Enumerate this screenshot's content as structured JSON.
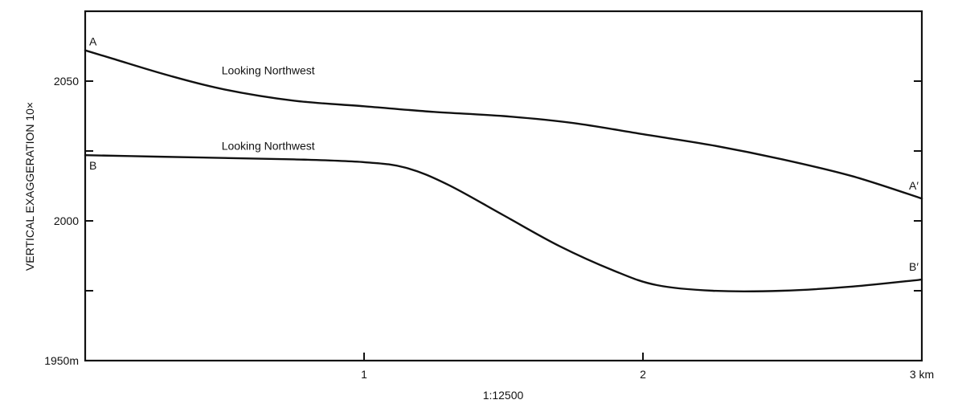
{
  "chart_data": {
    "type": "line",
    "title": "",
    "xlabel": "1:12500",
    "ylabel": "VERTICAL EXAGGERATION 10×",
    "xlim": [
      0,
      3
    ],
    "ylim": [
      1950,
      2075
    ],
    "x_ticks": [
      {
        "value": 1,
        "label": "1"
      },
      {
        "value": 2,
        "label": "2"
      },
      {
        "value": 3,
        "label": "3 km"
      }
    ],
    "y_ticks": [
      {
        "value": 1950,
        "label": "1950m"
      },
      {
        "value": 1975,
        "label": ""
      },
      {
        "value": 2000,
        "label": "2000"
      },
      {
        "value": 2025,
        "label": ""
      },
      {
        "value": 2050,
        "label": "2050"
      }
    ],
    "grid": false,
    "series": [
      {
        "name": "A–A′",
        "start_label": "A",
        "end_label": "A′",
        "annotation": "Looking Northwest",
        "points": [
          [
            0,
            2061
          ],
          [
            0.1,
            2058
          ],
          [
            0.3,
            2052
          ],
          [
            0.5,
            2047
          ],
          [
            0.75,
            2043
          ],
          [
            1.0,
            2041
          ],
          [
            1.25,
            2039
          ],
          [
            1.5,
            2037.5
          ],
          [
            1.75,
            2035
          ],
          [
            2.0,
            2031
          ],
          [
            2.25,
            2027
          ],
          [
            2.5,
            2022
          ],
          [
            2.75,
            2016
          ],
          [
            3.0,
            2008
          ]
        ]
      },
      {
        "name": "B–B′",
        "start_label": "B",
        "end_label": "B′",
        "annotation": "Looking Northwest",
        "points": [
          [
            0,
            2023.5
          ],
          [
            0.25,
            2023
          ],
          [
            0.5,
            2022.5
          ],
          [
            0.75,
            2022
          ],
          [
            1.0,
            2021
          ],
          [
            1.15,
            2019
          ],
          [
            1.3,
            2013
          ],
          [
            1.5,
            2002
          ],
          [
            1.7,
            1991
          ],
          [
            1.9,
            1982
          ],
          [
            2.05,
            1977
          ],
          [
            2.25,
            1975
          ],
          [
            2.5,
            1975
          ],
          [
            2.75,
            1976.5
          ],
          [
            3.0,
            1979
          ]
        ]
      }
    ],
    "annotations": [
      {
        "text": "Looking Northwest",
        "x": 0.93,
        "y": 2052.5
      },
      {
        "text": "Looking Northwest",
        "x": 0.93,
        "y": 2025.5
      }
    ],
    "scale_note": "1:12500"
  }
}
